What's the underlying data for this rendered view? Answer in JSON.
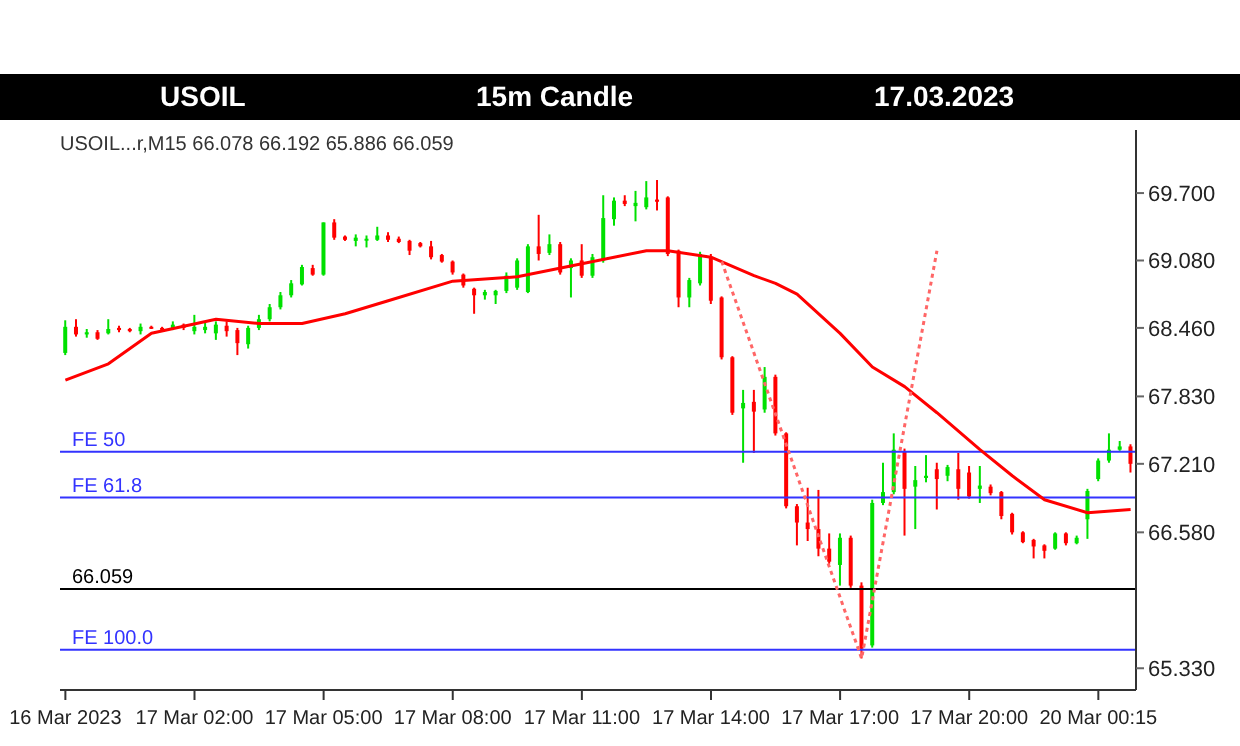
{
  "chart_data": {
    "type": "candlestick",
    "title": "USOIL",
    "subtitle": "15m Candle",
    "annotations": [
      "17.03.2023",
      "USOIL...r,M15  66.078 66.192 65.886 66.059"
    ],
    "categories": [
      "16 Mar 2023",
      null,
      null,
      null,
      null,
      null,
      null,
      null,
      null,
      null,
      null,
      null,
      "17 Mar 02:00",
      null,
      null,
      null,
      null,
      null,
      null,
      null,
      null,
      null,
      null,
      null,
      "17 Mar 05:00",
      null,
      null,
      null,
      null,
      null,
      null,
      null,
      null,
      null,
      null,
      null,
      "17 Mar 08:00",
      null,
      null,
      null,
      null,
      null,
      null,
      null,
      null,
      null,
      null,
      null,
      "17 Mar 11:00",
      null,
      null,
      null,
      null,
      null,
      null,
      null,
      null,
      null,
      null,
      null,
      "17 Mar 14:00",
      null,
      null,
      null,
      null,
      null,
      null,
      null,
      null,
      null,
      null,
      null,
      "17 Mar 17:00",
      null,
      null,
      null,
      null,
      null,
      null,
      null,
      null,
      null,
      null,
      null,
      "17 Mar 20:00",
      null,
      null,
      null,
      null,
      null,
      null,
      null,
      null,
      null,
      null,
      null,
      "20 Mar 00:15",
      null,
      null,
      null
    ],
    "ohlc": [
      [
        68.23,
        68.53,
        68.21,
        68.47
      ],
      [
        68.47,
        68.54,
        68.38,
        68.4
      ],
      [
        68.4,
        68.45,
        68.37,
        68.42
      ],
      [
        68.42,
        68.44,
        68.35,
        68.36
      ],
      [
        68.41,
        68.54,
        68.4,
        68.45
      ],
      [
        68.46,
        68.48,
        68.42,
        68.44
      ],
      [
        68.45,
        68.46,
        68.42,
        68.43
      ],
      [
        68.43,
        68.5,
        68.4,
        68.47
      ],
      [
        68.47,
        68.48,
        68.45,
        68.46
      ],
      [
        68.46,
        68.47,
        68.44,
        68.45
      ],
      [
        68.45,
        68.52,
        68.44,
        68.49
      ],
      [
        68.49,
        68.5,
        68.44,
        68.46
      ],
      [
        68.43,
        68.58,
        68.4,
        68.47
      ],
      [
        68.44,
        68.52,
        68.41,
        68.47
      ],
      [
        68.41,
        68.52,
        68.35,
        68.49
      ],
      [
        68.48,
        68.52,
        68.38,
        68.43
      ],
      [
        68.44,
        68.46,
        68.21,
        68.32
      ],
      [
        68.31,
        68.48,
        68.27,
        68.46
      ],
      [
        68.46,
        68.58,
        68.44,
        68.54
      ],
      [
        68.54,
        68.68,
        68.52,
        68.65
      ],
      [
        68.65,
        68.79,
        68.63,
        68.76
      ],
      [
        68.76,
        68.9,
        68.74,
        68.87
      ],
      [
        68.86,
        69.04,
        68.85,
        69.02
      ],
      [
        69.01,
        69.04,
        68.94,
        68.95
      ],
      [
        68.95,
        69.43,
        68.94,
        69.43
      ],
      [
        69.43,
        69.46,
        69.27,
        69.29
      ],
      [
        69.3,
        69.31,
        69.26,
        69.27
      ],
      [
        69.26,
        69.32,
        69.21,
        69.29
      ],
      [
        69.27,
        69.31,
        69.2,
        69.28
      ],
      [
        69.27,
        69.39,
        69.26,
        69.31
      ],
      [
        69.31,
        69.34,
        69.25,
        69.27
      ],
      [
        69.28,
        69.3,
        69.24,
        69.25
      ],
      [
        69.26,
        69.27,
        69.13,
        69.17
      ],
      [
        69.24,
        69.25,
        69.2,
        69.21
      ],
      [
        69.21,
        69.26,
        69.09,
        69.11
      ],
      [
        69.13,
        69.14,
        69.06,
        69.07
      ],
      [
        69.07,
        69.08,
        68.95,
        68.97
      ],
      [
        68.95,
        68.96,
        68.83,
        68.85
      ],
      [
        68.82,
        68.83,
        68.59,
        68.76
      ],
      [
        68.76,
        68.81,
        68.72,
        68.79
      ],
      [
        68.76,
        68.81,
        68.68,
        68.8
      ],
      [
        68.8,
        68.97,
        68.78,
        68.94
      ],
      [
        68.83,
        69.1,
        68.81,
        69.08
      ],
      [
        68.79,
        69.23,
        68.78,
        69.21
      ],
      [
        69.21,
        69.5,
        69.08,
        69.14
      ],
      [
        69.15,
        69.32,
        69.13,
        69.23
      ],
      [
        69.23,
        69.25,
        68.95,
        68.97
      ],
      [
        69.01,
        69.1,
        68.74,
        69.08
      ],
      [
        69.08,
        69.23,
        68.92,
        68.94
      ],
      [
        68.94,
        69.14,
        68.92,
        69.11
      ],
      [
        69.08,
        69.68,
        69.06,
        69.47
      ],
      [
        69.46,
        69.66,
        69.4,
        69.63
      ],
      [
        69.63,
        69.68,
        69.58,
        69.6
      ],
      [
        69.58,
        69.72,
        69.44,
        69.61
      ],
      [
        69.57,
        69.81,
        69.55,
        69.66
      ],
      [
        69.64,
        69.82,
        69.54,
        69.62
      ],
      [
        69.66,
        69.67,
        69.12,
        69.14
      ],
      [
        69.17,
        69.18,
        68.65,
        68.74
      ],
      [
        68.74,
        68.92,
        68.65,
        68.9
      ],
      [
        68.87,
        69.16,
        68.85,
        69.14
      ],
      [
        69.11,
        69.14,
        68.68,
        68.71
      ],
      [
        68.74,
        68.75,
        68.17,
        68.19
      ],
      [
        68.19,
        68.2,
        67.66,
        67.68
      ],
      [
        67.72,
        67.89,
        67.22,
        67.77
      ],
      [
        67.78,
        67.89,
        67.31,
        67.69
      ],
      [
        67.71,
        68.1,
        67.68,
        68.01
      ],
      [
        68.01,
        68.03,
        67.47,
        67.49
      ],
      [
        67.49,
        67.5,
        66.8,
        66.82
      ],
      [
        66.82,
        66.84,
        66.46,
        66.67
      ],
      [
        66.67,
        66.99,
        66.5,
        66.61
      ],
      [
        66.61,
        66.97,
        66.36,
        66.43
      ],
      [
        66.43,
        66.57,
        66.29,
        66.31
      ],
      [
        66.28,
        66.57,
        66.09,
        66.53
      ],
      [
        66.53,
        66.55,
        66.07,
        66.09
      ],
      [
        66.09,
        66.12,
        65.42,
        65.51
      ],
      [
        65.54,
        66.88,
        65.52,
        66.85
      ],
      [
        66.85,
        67.22,
        66.83,
        66.95
      ],
      [
        66.95,
        67.49,
        66.93,
        67.34
      ],
      [
        67.32,
        67.35,
        66.55,
        66.98
      ],
      [
        67.0,
        67.19,
        66.61,
        67.06
      ],
      [
        67.08,
        67.29,
        67.04,
        67.1
      ],
      [
        67.16,
        67.22,
        66.79,
        67.07
      ],
      [
        67.1,
        67.2,
        67.05,
        67.18
      ],
      [
        67.16,
        67.31,
        66.88,
        66.98
      ],
      [
        67.13,
        67.19,
        66.89,
        66.91
      ],
      [
        66.98,
        67.19,
        66.85,
        67.01
      ],
      [
        67.0,
        67.02,
        66.92,
        66.94
      ],
      [
        66.95,
        66.96,
        66.7,
        66.73
      ],
      [
        66.75,
        66.76,
        66.56,
        66.58
      ],
      [
        66.58,
        66.59,
        66.48,
        66.49
      ],
      [
        66.51,
        66.52,
        66.34,
        66.45
      ],
      [
        66.46,
        66.47,
        66.34,
        66.41
      ],
      [
        66.43,
        66.58,
        66.42,
        66.57
      ],
      [
        66.57,
        66.58,
        66.46,
        66.48
      ],
      [
        66.48,
        66.55,
        66.47,
        66.53
      ],
      [
        66.7,
        66.98,
        66.52,
        66.96
      ],
      [
        67.07,
        67.26,
        67.05,
        67.24
      ],
      [
        67.24,
        67.49,
        67.22,
        67.34
      ],
      [
        67.34,
        67.42,
        67.33,
        67.37
      ],
      [
        67.37,
        67.39,
        67.13,
        67.21
      ]
    ],
    "colors": [
      "#00e000",
      "#ff0000",
      "#00e000",
      "#ff0000",
      "#00e000",
      "#ff0000",
      "#ff0000",
      "#00e000",
      "#ff0000",
      "#ff0000",
      "#00e000",
      "#ff0000",
      "#00e000",
      "#00e000",
      "#00e000",
      "#ff0000",
      "#ff0000",
      "#00e000",
      "#00e000",
      "#00e000",
      "#00e000",
      "#00e000",
      "#00e000",
      "#ff0000",
      "#00e000",
      "#ff0000",
      "#ff0000",
      "#00e000",
      "#00e000",
      "#00e000",
      "#ff0000",
      "#ff0000",
      "#ff0000",
      "#ff0000",
      "#ff0000",
      "#ff0000",
      "#ff0000",
      "#ff0000",
      "#ff0000",
      "#00e000",
      "#00e000",
      "#00e000",
      "#00e000",
      "#00e000",
      "#ff0000",
      "#00e000",
      "#ff0000",
      "#00e000",
      "#ff0000",
      "#00e000",
      "#00e000",
      "#00e000",
      "#ff0000",
      "#00e000",
      "#00e000",
      "#ff0000",
      "#ff0000",
      "#ff0000",
      "#00e000",
      "#00e000",
      "#ff0000",
      "#ff0000",
      "#ff0000",
      "#00e000",
      "#ff0000",
      "#00e000",
      "#ff0000",
      "#ff0000",
      "#ff0000",
      "#ff0000",
      "#ff0000",
      "#ff0000",
      "#00e000",
      "#ff0000",
      "#ff0000",
      "#00e000",
      "#00e000",
      "#00e000",
      "#ff0000",
      "#00e000",
      "#00e000",
      "#ff0000",
      "#00e000",
      "#ff0000",
      "#ff0000",
      "#00e000",
      "#ff0000",
      "#ff0000",
      "#ff0000",
      "#ff0000",
      "#ff0000",
      "#ff0000",
      "#00e000",
      "#ff0000",
      "#00e000",
      "#00e000",
      "#00e000",
      "#00e000",
      "#00e000",
      "#ff0000"
    ],
    "series": [
      {
        "type": "line",
        "color": "#ff0000",
        "values": [
          67.98,
          null,
          null,
          null,
          68.13,
          null,
          null,
          null,
          68.41,
          null,
          null,
          null,
          null,
          null,
          68.54,
          null,
          null,
          null,
          68.5,
          null,
          null,
          null,
          68.5,
          null,
          null,
          null,
          68.59,
          null,
          null,
          null,
          68.71,
          null,
          null,
          null,
          null,
          null,
          68.89,
          null,
          null,
          null,
          null,
          null,
          68.93,
          null,
          null,
          null,
          null,
          null,
          69.05,
          null,
          null,
          null,
          null,
          null,
          69.17,
          null,
          69.17,
          null,
          null,
          null,
          69.11,
          null,
          null,
          null,
          68.94,
          null,
          68.87,
          null,
          68.77,
          null,
          null,
          null,
          68.41,
          null,
          null,
          68.1,
          null,
          null,
          67.92,
          null,
          null,
          67.68,
          null,
          null,
          null,
          67.34,
          null,
          null,
          67.1,
          null,
          null,
          66.88,
          null,
          null,
          null,
          66.76,
          null,
          null,
          null,
          66.79
        ]
      },
      {
        "type": "line",
        "color": "#ff6666",
        "line_style": "dotted",
        "values": [
          null,
          null,
          null,
          null,
          null,
          null,
          null,
          null,
          null,
          null,
          null,
          null,
          null,
          null,
          null,
          null,
          null,
          null,
          null,
          null,
          null,
          null,
          null,
          null,
          null,
          null,
          null,
          null,
          null,
          null,
          null,
          null,
          null,
          null,
          null,
          null,
          null,
          null,
          null,
          null,
          null,
          null,
          null,
          null,
          null,
          null,
          null,
          null,
          null,
          null,
          null,
          null,
          null,
          null,
          null,
          null,
          null,
          null,
          null,
          null,
          null,
          69.07,
          null,
          null,
          null,
          null,
          null,
          null,
          null,
          null,
          null,
          null,
          null,
          null,
          65.42,
          null,
          null,
          null,
          null,
          null,
          null,
          69.17,
          null,
          null,
          null,
          null,
          null,
          null,
          null,
          null,
          null,
          null,
          null,
          null,
          null,
          null,
          null,
          null,
          null,
          null
        ]
      }
    ],
    "ylim": [
      65.13,
      70.28
    ],
    "yticks": [
      {
        "value": 69.7,
        "label": "69.700"
      },
      {
        "value": 69.08,
        "label": "69.080"
      },
      {
        "value": 68.46,
        "label": "68.460"
      },
      {
        "value": 67.83,
        "label": "67.830"
      },
      {
        "value": 67.21,
        "label": "67.210"
      },
      {
        "value": 66.58,
        "label": "66.580"
      },
      {
        "value": 65.33,
        "label": "65.330"
      }
    ],
    "ref_lines": [
      {
        "axis": "y",
        "value": 67.32,
        "label": "FE 50",
        "color": "#3333ff"
      },
      {
        "axis": "y",
        "value": 66.9,
        "label": "FE 61.8",
        "color": "#3333ff"
      },
      {
        "axis": "y",
        "value": 65.5,
        "label": "FE 100.0",
        "color": "#3333ff"
      },
      {
        "axis": "y",
        "value": 66.059,
        "label": "66.059",
        "color": "#000000"
      }
    ],
    "grid": false,
    "legend": false
  }
}
